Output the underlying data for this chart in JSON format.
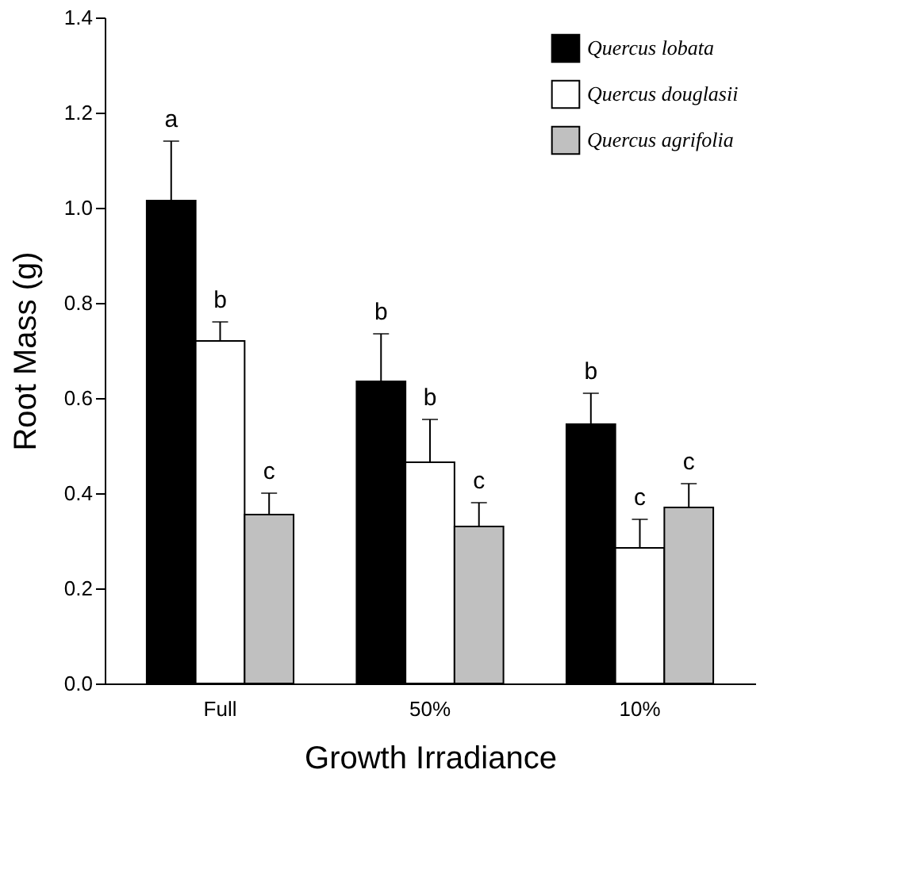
{
  "chart_data": {
    "type": "bar",
    "xlabel": "Growth Irradiance",
    "ylabel": "Root Mass (g)",
    "categories": [
      "Full",
      "50%",
      "10%"
    ],
    "series": [
      {
        "name": "Quercus lobata",
        "color": "#000000",
        "values": [
          1.015,
          0.635,
          0.545
        ],
        "errors": [
          [
            1.015,
            1.14
          ],
          [
            0.635,
            0.735
          ],
          [
            0.545,
            0.61
          ]
        ],
        "value_labels": [
          "a",
          "b",
          "b"
        ]
      },
      {
        "name": "Quercus douglasii",
        "color": "#ffffff",
        "values": [
          0.72,
          0.465,
          0.285
        ],
        "errors": [
          [
            0.72,
            0.76
          ],
          [
            0.465,
            0.555
          ],
          [
            0.285,
            0.345
          ]
        ],
        "value_labels": [
          "b",
          "b",
          "c"
        ]
      },
      {
        "name": "Quercus agrifolia",
        "color": "#c0c0c0",
        "values": [
          0.355,
          0.33,
          0.37
        ],
        "errors": [
          [
            0.355,
            0.4
          ],
          [
            0.33,
            0.38
          ],
          [
            0.37,
            0.42
          ]
        ],
        "value_labels": [
          "c",
          "c",
          "c"
        ]
      }
    ],
    "ylim": [
      0,
      1.4
    ],
    "yticks": [
      {
        "value": 0,
        "label": "0.0"
      },
      {
        "value": 0.2,
        "label": "0.2"
      },
      {
        "value": 0.4,
        "label": "0.4"
      },
      {
        "value": 0.6,
        "label": "0.6"
      },
      {
        "value": 0.8,
        "label": "0.8"
      },
      {
        "value": 1.0,
        "label": "1.0"
      },
      {
        "value": 1.2,
        "label": "1.2"
      },
      {
        "value": 1.4,
        "label": "1.4"
      }
    ],
    "grid": false,
    "legend": "top right"
  }
}
